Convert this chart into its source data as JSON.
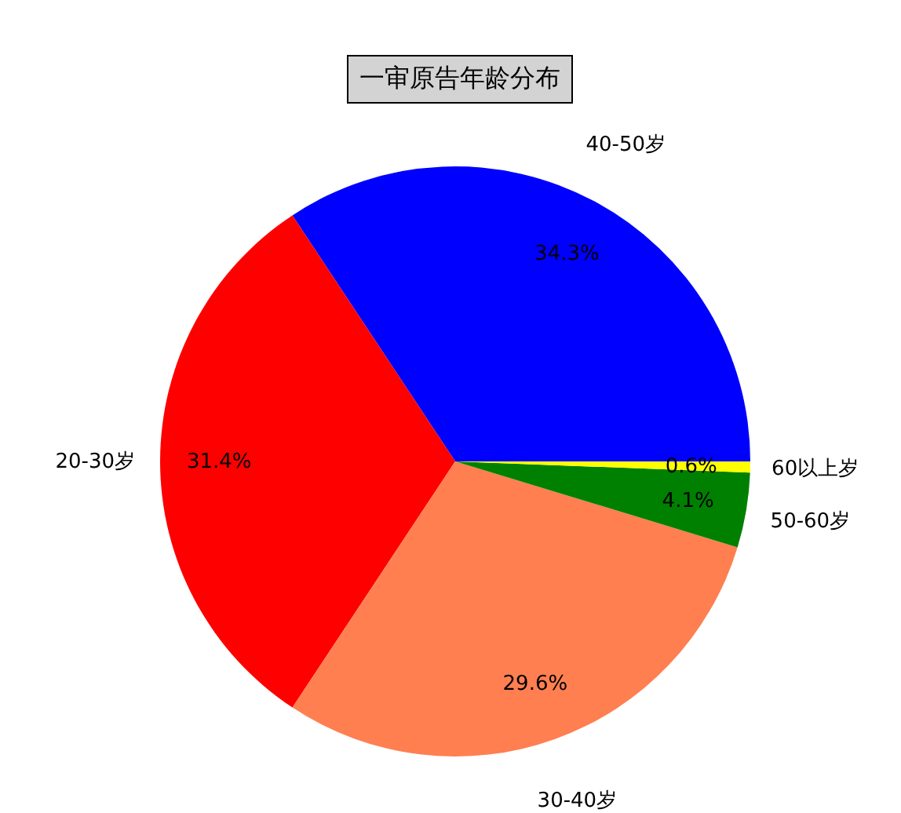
{
  "chart_data": {
    "type": "pie",
    "title": "一审原告年龄分布",
    "categories": [
      "40-50岁",
      "20-30岁",
      "30-40岁",
      "50-60岁",
      "60以上岁"
    ],
    "values": [
      34.3,
      31.4,
      29.6,
      4.1,
      0.6
    ],
    "value_labels": [
      "34.3%",
      "31.4%",
      "29.6%",
      "4.1%",
      "0.6%"
    ],
    "colors": [
      "#0000ff",
      "#ff0000",
      "#ff7f50",
      "#008000",
      "#ffff00"
    ]
  }
}
